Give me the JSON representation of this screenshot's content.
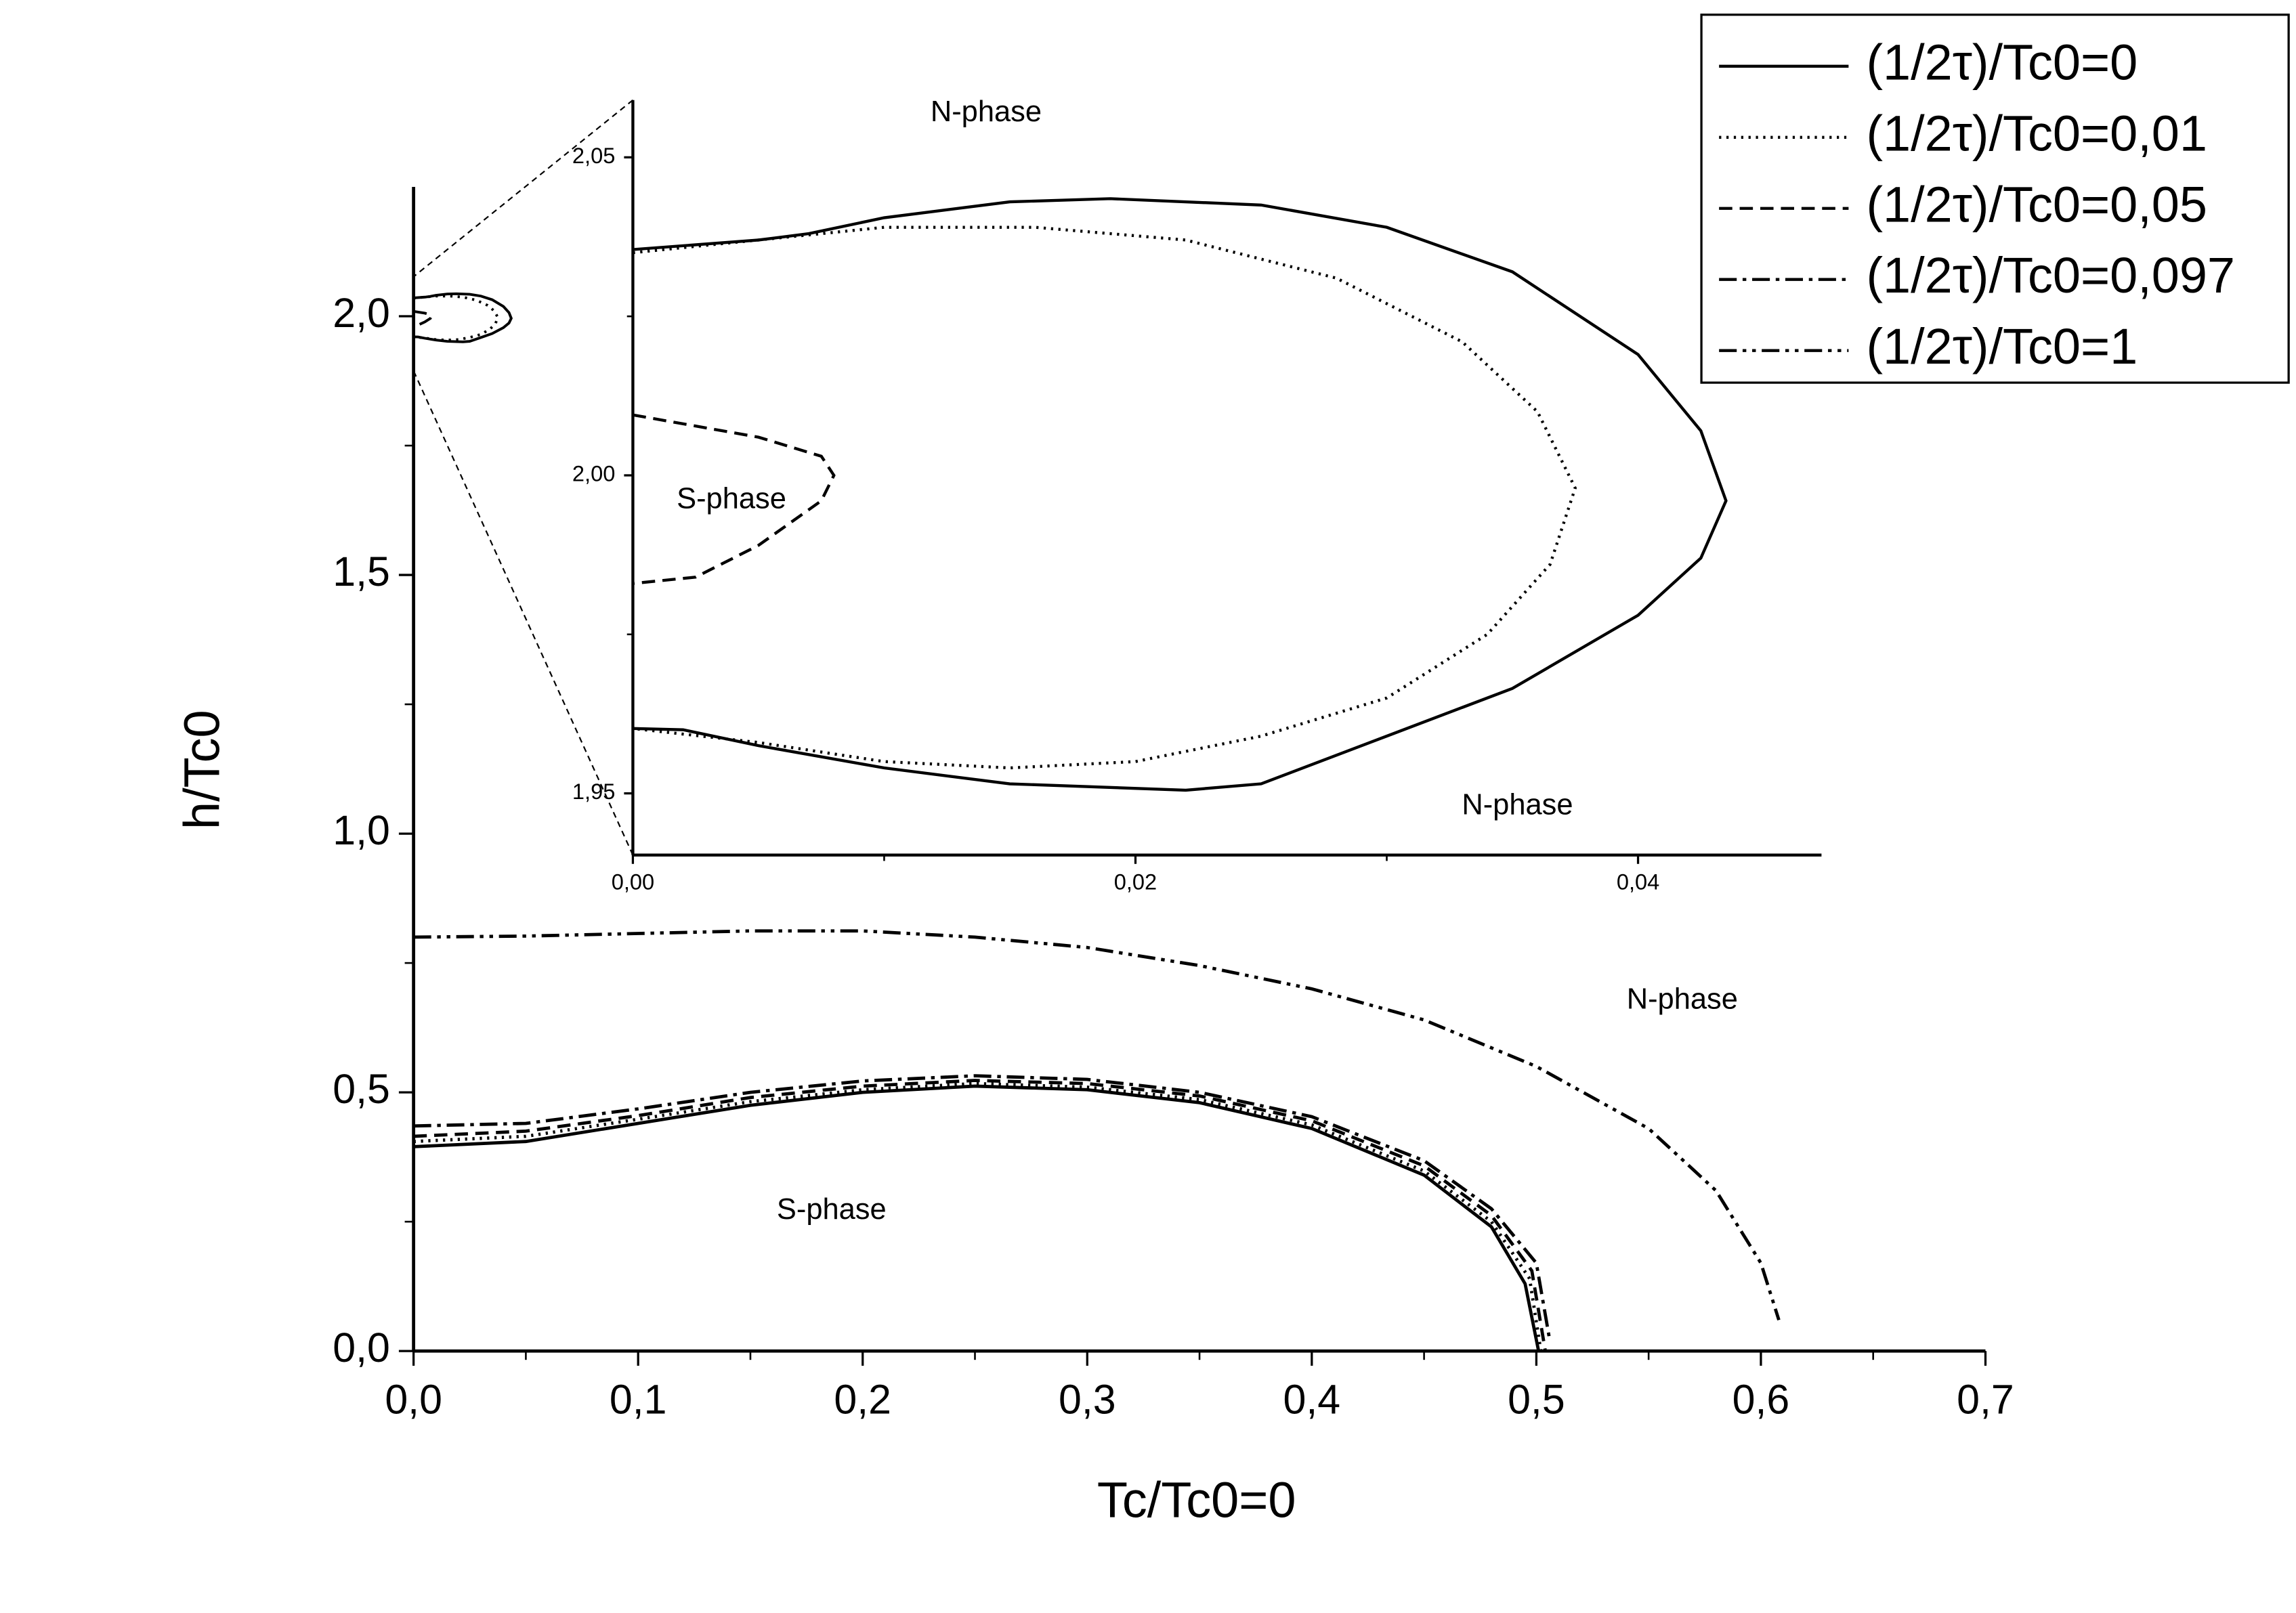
{
  "chart_data": [
    {
      "type": "line",
      "xlabel": "Tc/Tc0=0",
      "ylabel": "h/Tc0",
      "xlim": [
        0,
        0.7
      ],
      "ylim": [
        0,
        2.25
      ],
      "xticks": [
        {
          "value": 0,
          "label": "0,0"
        },
        {
          "value": 0.1,
          "label": "0,1"
        },
        {
          "value": 0.2,
          "label": "0,2"
        },
        {
          "value": 0.3,
          "label": "0,3"
        },
        {
          "value": 0.4,
          "label": "0,4"
        },
        {
          "value": 0.5,
          "label": "0,5"
        },
        {
          "value": 0.6,
          "label": "0,6"
        },
        {
          "value": 0.7,
          "label": "0,7"
        }
      ],
      "xticks_minor": [
        0.05,
        0.15,
        0.25,
        0.35,
        0.45,
        0.55,
        0.65
      ],
      "yticks": [
        {
          "value": 0,
          "label": "0,0"
        },
        {
          "value": 0.5,
          "label": "0,5"
        },
        {
          "value": 1,
          "label": "1,0"
        },
        {
          "value": 1.5,
          "label": "1,5"
        },
        {
          "value": 2,
          "label": "2,0"
        }
      ],
      "yticks_minor": [
        0.25,
        0.75,
        1.25,
        1.75
      ],
      "legend": "top-right",
      "annotations": [
        "N-phase",
        "S-phase"
      ],
      "series": [
        {
          "name": "(1/2τ)/Tc0=0",
          "color": "#000000",
          "style": "solid",
          "x": [
            0,
            0.05,
            0.1,
            0.15,
            0.2,
            0.25,
            0.3,
            0.35,
            0.4,
            0.45,
            0.48,
            0.495,
            0.501
          ],
          "values": [
            0.395,
            0.405,
            0.44,
            0.475,
            0.5,
            0.512,
            0.505,
            0.48,
            0.43,
            0.34,
            0.24,
            0.13,
            0
          ]
        },
        {
          "name": "(1/2τ)/Tc0=0,01",
          "color": "#000000",
          "style": "dotted",
          "x": [
            0,
            0.05,
            0.1,
            0.15,
            0.2,
            0.25,
            0.3,
            0.35,
            0.4,
            0.45,
            0.48,
            0.497,
            0.502
          ],
          "values": [
            0.405,
            0.415,
            0.448,
            0.482,
            0.505,
            0.517,
            0.51,
            0.486,
            0.437,
            0.348,
            0.25,
            0.14,
            0
          ]
        },
        {
          "name": "(1/2τ)/Tc0=0,05",
          "color": "#000000",
          "style": "dashed",
          "x": [
            0,
            0.05,
            0.1,
            0.15,
            0.2,
            0.25,
            0.3,
            0.35,
            0.4,
            0.45,
            0.48,
            0.498,
            0.504
          ],
          "values": [
            0.415,
            0.425,
            0.455,
            0.49,
            0.512,
            0.523,
            0.517,
            0.493,
            0.445,
            0.358,
            0.262,
            0.155,
            0
          ]
        },
        {
          "name": "(1/2τ)/Tc0=0,097",
          "color": "#000000",
          "style": "dashdot",
          "x": [
            0,
            0.05,
            0.1,
            0.15,
            0.2,
            0.25,
            0.3,
            0.35,
            0.4,
            0.45,
            0.48,
            0.5,
            0.506
          ],
          "values": [
            0.435,
            0.44,
            0.468,
            0.5,
            0.522,
            0.532,
            0.525,
            0.5,
            0.453,
            0.368,
            0.275,
            0.17,
            0.02
          ]
        },
        {
          "name": "(1/2τ)/Tc0=1",
          "color": "#000000",
          "style": "dashdotdot",
          "x": [
            0,
            0.05,
            0.1,
            0.15,
            0.2,
            0.25,
            0.3,
            0.35,
            0.4,
            0.45,
            0.5,
            0.55,
            0.58,
            0.6,
            0.608
          ],
          "values": [
            0.8,
            0.802,
            0.807,
            0.812,
            0.812,
            0.8,
            0.78,
            0.745,
            0.7,
            0.64,
            0.55,
            0.43,
            0.31,
            0.17,
            0.06
          ]
        }
      ]
    },
    {
      "type": "line",
      "xlim": [
        0,
        0.0473
      ],
      "ylim": [
        1.9403,
        2.059
      ],
      "xticks": [
        {
          "value": 0,
          "label": "0,00"
        },
        {
          "value": 0.02,
          "label": "0,02"
        },
        {
          "value": 0.04,
          "label": "0,04"
        }
      ],
      "xticks_minor": [
        0.01,
        0.03
      ],
      "yticks": [
        {
          "value": 1.95,
          "label": "1,95"
        },
        {
          "value": 2,
          "label": "2,00"
        },
        {
          "value": 2.05,
          "label": "2,05"
        }
      ],
      "yticks_minor": [
        1.975,
        2.025
      ],
      "annotations": [
        "N-phase",
        "S-phase",
        "N-phase"
      ],
      "series": [
        {
          "color": "#000000",
          "style": "solid",
          "x": [
            0,
            0.005,
            0.007,
            0.01,
            0.015,
            0.019,
            0.025,
            0.03,
            0.035,
            0.04,
            0.0425,
            0.0435,
            0.0425,
            0.04,
            0.035,
            0.03,
            0.025,
            0.022,
            0.015,
            0.01,
            0.005,
            0.002,
            0
          ],
          "values": [
            2.0355,
            2.037,
            2.038,
            2.0405,
            2.043,
            2.0435,
            2.0425,
            2.039,
            2.032,
            2.019,
            2.007,
            1.996,
            1.987,
            1.978,
            1.9665,
            1.959,
            1.9515,
            1.9505,
            1.9515,
            1.954,
            1.9575,
            1.96,
            1.9602
          ]
        },
        {
          "color": "#000000",
          "style": "dotted",
          "x": [
            0,
            0.005,
            0.01,
            0.016,
            0.022,
            0.028,
            0.033,
            0.036,
            0.0375,
            0.0365,
            0.034,
            0.03,
            0.025,
            0.02,
            0.015,
            0.01,
            0.005,
            0
          ],
          "values": [
            2.035,
            2.037,
            2.039,
            2.039,
            2.037,
            2.031,
            2.021,
            2.01,
            1.998,
            1.986,
            1.975,
            1.965,
            1.959,
            1.955,
            1.954,
            1.955,
            1.958,
            1.9602
          ]
        },
        {
          "color": "#000000",
          "style": "dashed",
          "x": [
            0,
            0.005,
            0.0075,
            0.008,
            0.0075,
            0.005,
            0.0025,
            0
          ],
          "values": [
            2.0095,
            2.006,
            2.003,
            2,
            1.996,
            1.989,
            1.984,
            1.983
          ]
        }
      ]
    }
  ]
}
